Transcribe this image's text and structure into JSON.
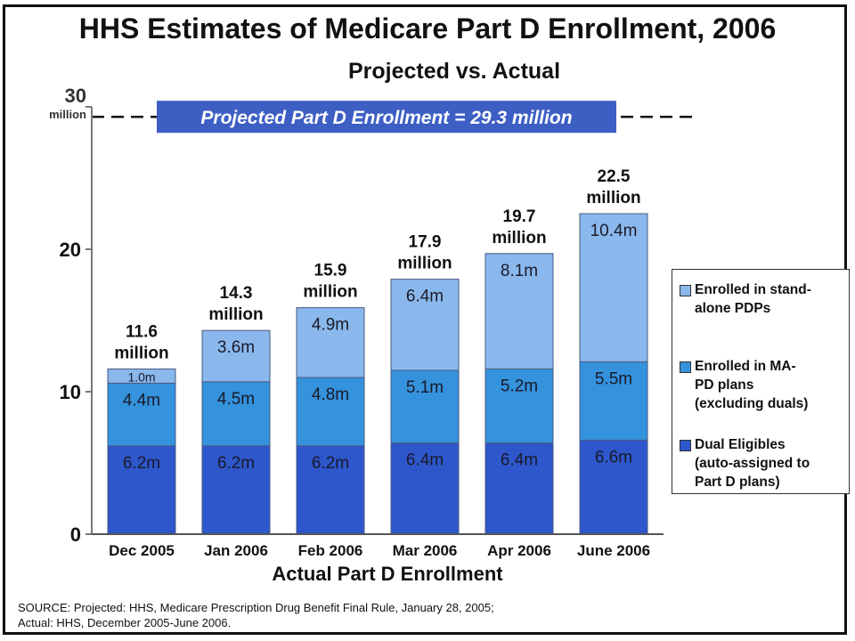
{
  "chart_data": {
    "type": "bar",
    "stacked": true,
    "title": "HHS Estimates of Medicare Part D Enrollment, 2006",
    "subtitle": "Projected vs. Actual",
    "xlabel": "Actual Part D Enrollment",
    "categories": [
      "Dec 2005",
      "Jan 2006",
      "Feb 2006",
      "Mar 2006",
      "Apr 2006",
      "June 2006"
    ],
    "series": [
      {
        "name": "Dual Eligibles\n(auto-assigned to\nPart D plans)",
        "color": "#2e57cc",
        "values": [
          6.2,
          6.2,
          6.2,
          6.4,
          6.4,
          6.6
        ],
        "labels": [
          "6.2m",
          "6.2m",
          "6.2m",
          "6.4m",
          "6.4m",
          "6.6m"
        ]
      },
      {
        "name": "Enrolled in MA-\nPD plans\n(excluding duals)",
        "color": "#3592dd",
        "values": [
          4.4,
          4.5,
          4.8,
          5.1,
          5.2,
          5.5
        ],
        "labels": [
          "4.4m",
          "4.5m",
          "4.8m",
          "5.1m",
          "5.2m",
          "5.5m"
        ]
      },
      {
        "name": "Enrolled in stand-\nalone PDPs",
        "color": "#8ab8ec",
        "values": [
          1.0,
          3.6,
          4.9,
          6.4,
          8.1,
          10.4
        ],
        "labels": [
          "1.0m",
          "3.6m",
          "4.9m",
          "6.4m",
          "8.1m",
          "10.4m"
        ]
      }
    ],
    "totals": [
      11.6,
      14.3,
      15.9,
      17.9,
      19.7,
      22.5
    ],
    "total_labels": [
      [
        "11.6",
        "million"
      ],
      [
        "14.3",
        "million"
      ],
      [
        "15.9",
        "million"
      ],
      [
        "17.9",
        "million"
      ],
      [
        "19.7",
        "million"
      ],
      [
        "22.5",
        "million"
      ]
    ],
    "ylim": [
      0,
      30
    ],
    "yticks": [
      {
        "value": 0,
        "label": "0",
        "sublabel": ""
      },
      {
        "value": 10,
        "label": "10",
        "sublabel": ""
      },
      {
        "value": 20,
        "label": "20",
        "sublabel": ""
      },
      {
        "value": 30,
        "label": "30",
        "sublabel": "million"
      }
    ],
    "projection": {
      "value": 29.3,
      "label": "Projected Part D Enrollment = 29.3 million",
      "box_color": "#3d5fc4"
    }
  },
  "legend_order": [
    2,
    1,
    0
  ],
  "source": {
    "line1": "SOURCE: Projected: HHS, Medicare Prescription Drug Benefit Final Rule, January 28, 2005;",
    "line2": "Actual: HHS, December 2005-June 2006."
  }
}
